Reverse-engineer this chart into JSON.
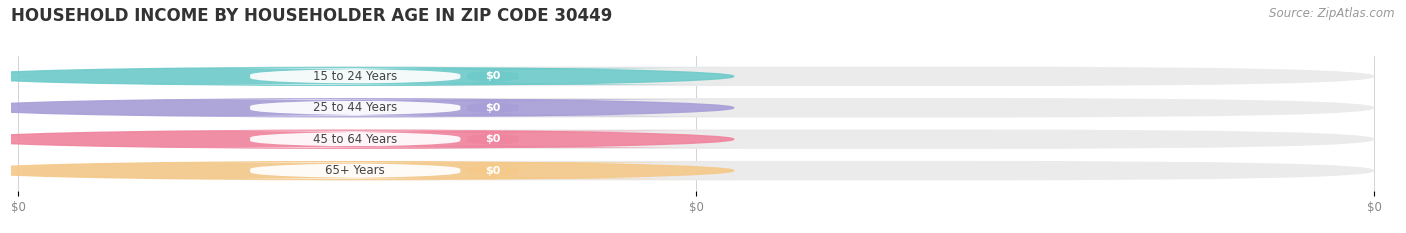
{
  "title": "HOUSEHOLD INCOME BY HOUSEHOLDER AGE IN ZIP CODE 30449",
  "source_text": "Source: ZipAtlas.com",
  "categories": [
    "15 to 24 Years",
    "25 to 44 Years",
    "45 to 64 Years",
    "65+ Years"
  ],
  "values": [
    0,
    0,
    0,
    0
  ],
  "bar_colors": [
    "#6ecbca",
    "#a89fd8",
    "#f0849e",
    "#f5c98a"
  ],
  "bg_color": "#ffffff",
  "bar_bg_color": "#ebebeb",
  "title_fontsize": 12,
  "source_fontsize": 8.5,
  "value_labels": [
    "$0",
    "$0",
    "$0",
    "$0"
  ],
  "x_tick_labels": [
    "$0",
    "$0",
    "$0"
  ],
  "x_tick_positions": [
    0.0,
    0.5,
    1.0
  ]
}
